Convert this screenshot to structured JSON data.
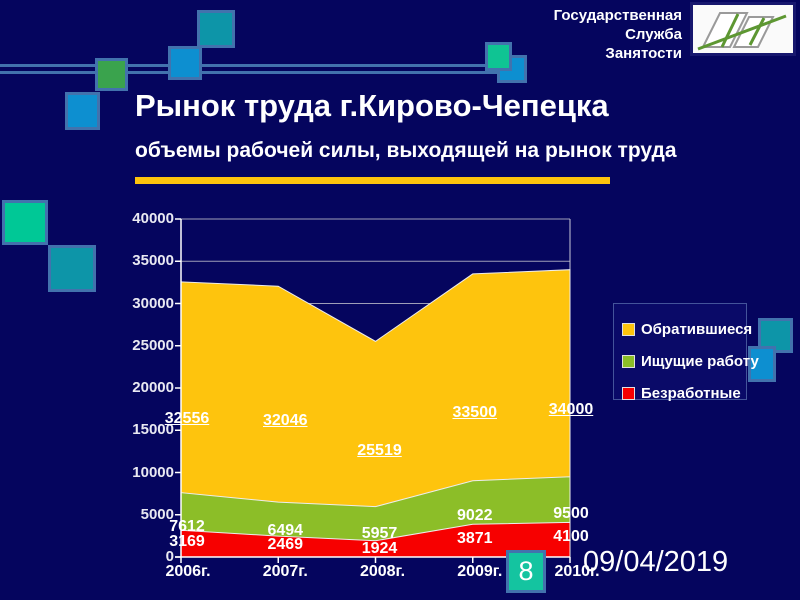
{
  "slide": {
    "title": "Рынок труда г.Кирово-Чепецка",
    "subtitle": "объемы рабочей силы, выходящей на рынок труда",
    "page_number": "8",
    "date": "09/04/2019",
    "org": {
      "line1": "Государственная",
      "line2": "Служба",
      "line3": "Занятости"
    }
  },
  "colors": {
    "background": "#05055e",
    "accent_gold": "#fec40d",
    "decor_border_blue": "#4272ad"
  },
  "chart_data": {
    "type": "area",
    "overlap": true,
    "title": "",
    "xlabel": "",
    "ylabel": "",
    "categories": [
      "2006г.",
      "2007г.",
      "2008г.",
      "2009г.",
      "2010г."
    ],
    "series": [
      {
        "name": "Обратившиеся",
        "color": "#fec40d",
        "values": [
          32556,
          32046,
          25519,
          33500,
          34000
        ],
        "labels_underlined": true
      },
      {
        "name": "Ищущие работу",
        "color": "#8cbe28",
        "values": [
          7612,
          6494,
          5957,
          9022,
          9500
        ],
        "labels_underlined": false
      },
      {
        "name": "Безработные",
        "color": "#f70000",
        "values": [
          3169,
          2469,
          1924,
          3871,
          4100
        ],
        "labels_underlined": false
      }
    ],
    "y_ticks": [
      0,
      5000,
      10000,
      15000,
      20000,
      25000,
      30000,
      35000,
      40000
    ],
    "ylim": [
      0,
      40000
    ],
    "grid": true,
    "legend_position": "right"
  }
}
